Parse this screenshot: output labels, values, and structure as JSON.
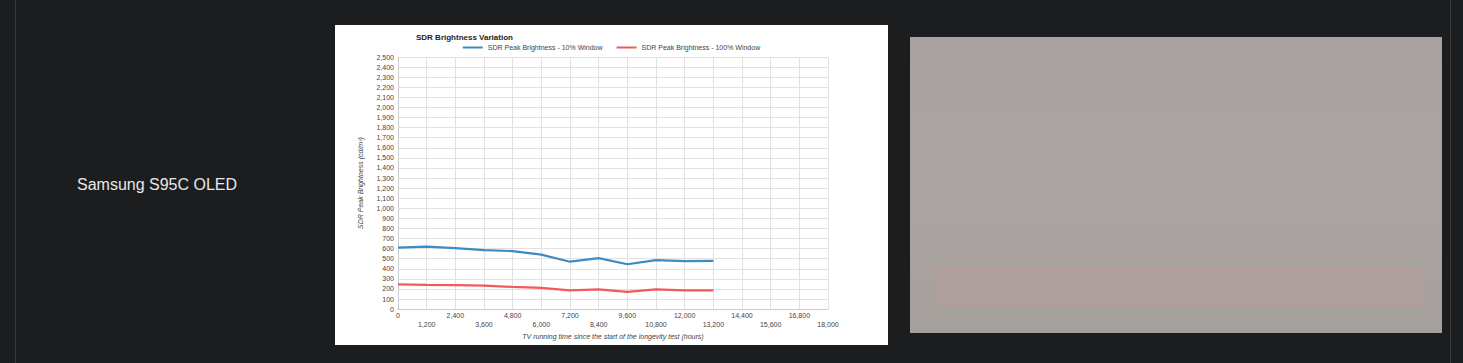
{
  "row_label": "Samsung S95C OLED",
  "chart_data": {
    "type": "line",
    "title": "SDR Brightness Variation",
    "x_label": "TV running time since the start of the longevity test (hours)",
    "y_label": "SDR Peak Brightness (cd/m²)",
    "x": [
      0,
      1200,
      2400,
      3600,
      4800,
      6000,
      7200,
      8400,
      9600,
      10800,
      12000,
      13200
    ],
    "series": [
      {
        "name": "SDR Peak Brightness - 10% Window",
        "color": "#3b8bc4",
        "values": [
          610,
          620,
          605,
          585,
          575,
          540,
          470,
          505,
          445,
          485,
          475,
          478
        ]
      },
      {
        "name": "SDR Peak Brightness - 100% Window",
        "color": "#f05a5a",
        "values": [
          245,
          240,
          238,
          232,
          220,
          210,
          185,
          195,
          170,
          195,
          185,
          185
        ]
      }
    ],
    "xlim": [
      0,
      18000
    ],
    "xticks": [
      0,
      {
        "value": 1200,
        "label": "1,200"
      },
      {
        "value": 2400,
        "label": "2,400"
      },
      {
        "value": 3600,
        "label": "3,600"
      },
      {
        "value": 4800,
        "label": "4,800"
      },
      {
        "value": 6000,
        "label": "6,000"
      },
      {
        "value": 7200,
        "label": "7,200"
      },
      {
        "value": 8400,
        "label": "8,400"
      },
      {
        "value": 9600,
        "label": "9,600"
      },
      {
        "value": 10800,
        "label": "10,800"
      },
      {
        "value": 12000,
        "label": "12,000"
      },
      {
        "value": 13200,
        "label": "13,200"
      },
      {
        "value": 14400,
        "label": "14,400"
      },
      {
        "value": 15600,
        "label": "15,600"
      },
      {
        "value": 16800,
        "label": "16,800"
      },
      {
        "value": 18000,
        "label": "18,000"
      }
    ],
    "ylim": [
      0,
      2500
    ],
    "yticks": [
      0,
      100,
      200,
      300,
      400,
      500,
      600,
      700,
      800,
      900,
      {
        "value": 1000,
        "label": "1,000"
      },
      {
        "value": 1100,
        "label": "1,100"
      },
      {
        "value": 1200,
        "label": "1,200"
      },
      {
        "value": 1300,
        "label": "1,300"
      },
      {
        "value": 1400,
        "label": "1,400"
      },
      {
        "value": 1500,
        "label": "1,500"
      },
      {
        "value": 1600,
        "label": "1,600"
      },
      {
        "value": 1700,
        "label": "1,700"
      },
      {
        "value": 1800,
        "label": "1,800"
      },
      {
        "value": 1900,
        "label": "1,900"
      },
      {
        "value": 2000,
        "label": "2,000"
      },
      {
        "value": 2100,
        "label": "2,100"
      },
      {
        "value": 2200,
        "label": "2,200"
      },
      {
        "value": 2300,
        "label": "2,300"
      },
      {
        "value": 2400,
        "label": "2,400"
      },
      {
        "value": 2500,
        "label": "2,500"
      }
    ],
    "grid": true,
    "legend": "top"
  }
}
